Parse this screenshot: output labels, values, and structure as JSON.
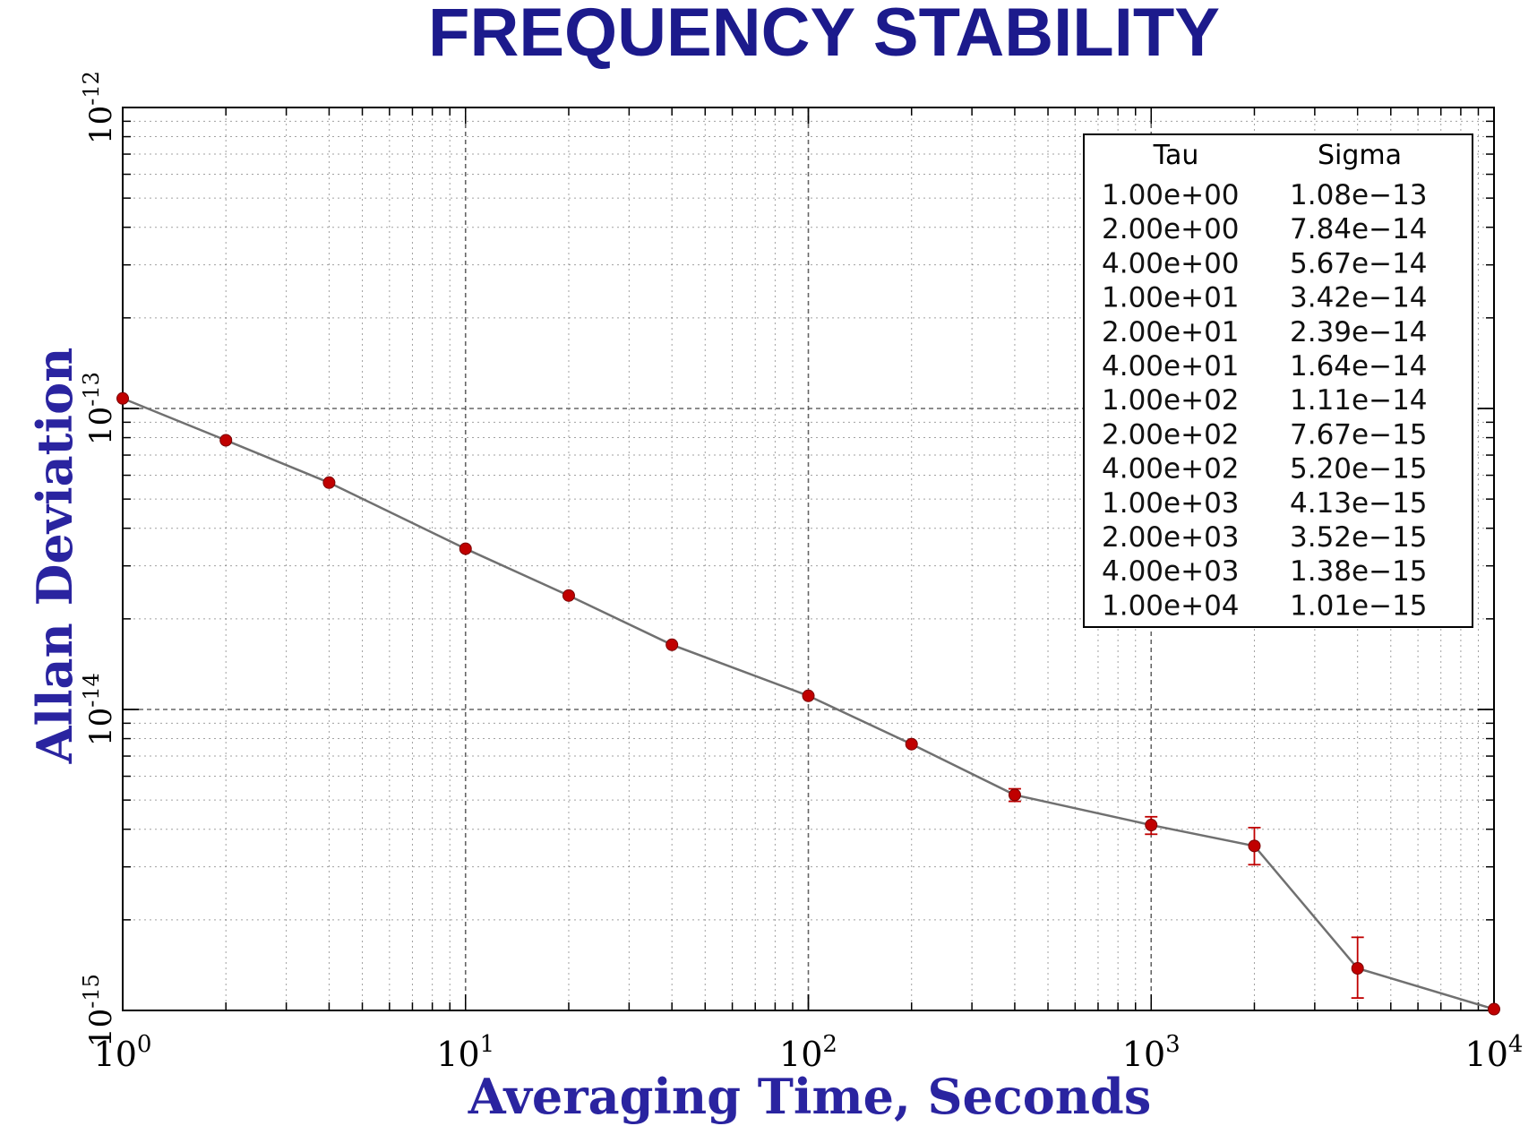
{
  "title": "FREQUENCY STABILITY",
  "colors": {
    "title": "#1c1a8c",
    "axis_label": "#2a24a0",
    "line": "#707070",
    "marker": "#c00000",
    "grid": "#555555",
    "frame": "#000000"
  },
  "chart_data": {
    "type": "line",
    "title": "FREQUENCY STABILITY",
    "xlabel": "Averaging Time, Seconds",
    "ylabel": "Allan Deviation",
    "xscale": "log",
    "yscale": "log",
    "xlim": [
      1,
      10000
    ],
    "ylim": [
      1e-15,
      1e-12
    ],
    "grid": true,
    "x_ticks": [
      {
        "value": 1,
        "base": "10",
        "exp": "0"
      },
      {
        "value": 10,
        "base": "10",
        "exp": "1"
      },
      {
        "value": 100,
        "base": "10",
        "exp": "2"
      },
      {
        "value": 1000,
        "base": "10",
        "exp": "3"
      },
      {
        "value": 10000,
        "base": "10",
        "exp": "4"
      }
    ],
    "y_ticks": [
      {
        "value": 1e-15,
        "base": "10",
        "exp": "-15"
      },
      {
        "value": 1e-14,
        "base": "10",
        "exp": "-14"
      },
      {
        "value": 1e-13,
        "base": "10",
        "exp": "-13"
      },
      {
        "value": 1e-12,
        "base": "10",
        "exp": "-12"
      }
    ],
    "x": [
      1,
      2,
      4,
      10,
      20,
      40,
      100,
      200,
      400,
      1000,
      2000,
      4000,
      10000
    ],
    "y": [
      1.08e-13,
      7.84e-14,
      5.67e-14,
      3.42e-14,
      2.39e-14,
      1.64e-14,
      1.11e-14,
      7.67e-15,
      5.2e-15,
      4.13e-15,
      3.52e-15,
      1.38e-15,
      1.01e-15
    ],
    "error_bars": [
      {
        "x": 400,
        "low": 4.95e-15,
        "high": 5.45e-15
      },
      {
        "x": 1000,
        "low": 3.85e-15,
        "high": 4.4e-15
      },
      {
        "x": 2000,
        "low": 3.05e-15,
        "high": 4.05e-15
      },
      {
        "x": 4000,
        "low": 1.1e-15,
        "high": 1.75e-15
      }
    ],
    "legend_placement": "top-right",
    "table": {
      "headers": [
        "Tau",
        "Sigma"
      ],
      "rows": [
        [
          "1.00e+00",
          "1.08e−13"
        ],
        [
          "2.00e+00",
          "7.84e−14"
        ],
        [
          "4.00e+00",
          "5.67e−14"
        ],
        [
          "1.00e+01",
          "3.42e−14"
        ],
        [
          "2.00e+01",
          "2.39e−14"
        ],
        [
          "4.00e+01",
          "1.64e−14"
        ],
        [
          "1.00e+02",
          "1.11e−14"
        ],
        [
          "2.00e+02",
          "7.67e−15"
        ],
        [
          "4.00e+02",
          "5.20e−15"
        ],
        [
          "1.00e+03",
          "4.13e−15"
        ],
        [
          "2.00e+03",
          "3.52e−15"
        ],
        [
          "4.00e+03",
          "1.38e−15"
        ],
        [
          "1.00e+04",
          "1.01e−15"
        ]
      ]
    }
  }
}
